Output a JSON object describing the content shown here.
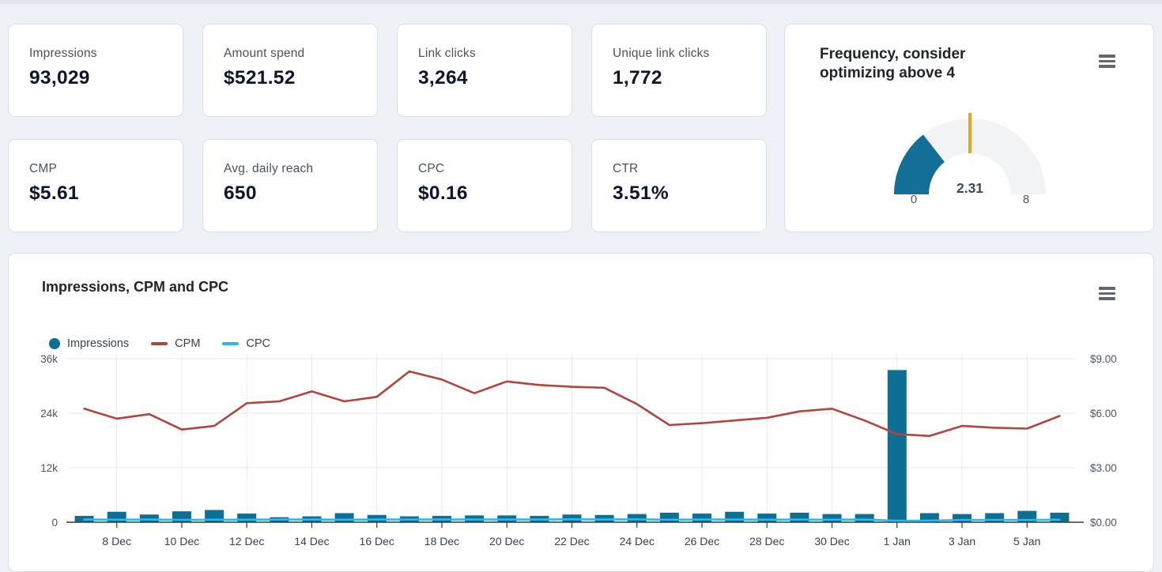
{
  "page": {
    "top_strip_color": "#e1e4eb",
    "background": "#eef2f7"
  },
  "kpi_cards": [
    {
      "label": "Impressions",
      "value": "93,029"
    },
    {
      "label": "Amount spend",
      "value": "$521.52"
    },
    {
      "label": "Link clicks",
      "value": "3,264"
    },
    {
      "label": "Unique link clicks",
      "value": "1,772"
    },
    {
      "label": "CMP",
      "value": "$5.61"
    },
    {
      "label": "Avg. daily reach",
      "value": "650"
    },
    {
      "label": "CPC",
      "value": "$0.16"
    },
    {
      "label": "CTR",
      "value": "3.51%"
    }
  ],
  "gauge_card": {
    "title": "Frequency, consider optimizing above 4",
    "menu_icon": "hamburger-menu",
    "gauge": {
      "min": 0,
      "max": 8,
      "value": 2.31,
      "threshold": 4,
      "min_label": "0",
      "max_label": "8",
      "value_label": "2.31",
      "fill_color": "#136f96",
      "track_color": "#f2f3f4",
      "threshold_color": "#e9a51f"
    }
  },
  "chart_card": {
    "title": "Impressions, CPM and CPC",
    "menu_icon": "hamburger-menu",
    "legend": [
      {
        "label": "Impressions",
        "marker": "circle",
        "color": "#0e6f94"
      },
      {
        "label": "CPM",
        "marker": "line",
        "color": "#b2453c"
      },
      {
        "label": "CPC",
        "marker": "line",
        "color": "#29b8ef"
      }
    ]
  },
  "chart_data": {
    "type": "combo",
    "title": "Impressions, CPM and CPC",
    "categories": [
      "7 Dec",
      "8 Dec",
      "9 Dec",
      "10 Dec",
      "11 Dec",
      "12 Dec",
      "13 Dec",
      "14 Dec",
      "15 Dec",
      "16 Dec",
      "17 Dec",
      "18 Dec",
      "19 Dec",
      "20 Dec",
      "21 Dec",
      "22 Dec",
      "23 Dec",
      "24 Dec",
      "25 Dec",
      "26 Dec",
      "27 Dec",
      "28 Dec",
      "29 Dec",
      "30 Dec",
      "31 Dec",
      "1 Jan",
      "2 Jan",
      "3 Jan",
      "4 Jan",
      "5 Jan",
      "6 Jan"
    ],
    "x_tick_labels": [
      "8 Dec",
      "10 Dec",
      "12 Dec",
      "14 Dec",
      "16 Dec",
      "18 Dec",
      "20 Dec",
      "22 Dec",
      "24 Dec",
      "26 Dec",
      "28 Dec",
      "30 Dec",
      "1 Jan",
      "3 Jan",
      "5 Jan"
    ],
    "series": [
      {
        "name": "Impressions",
        "type": "bar",
        "axis": "left",
        "color": "#0e6f94",
        "values": [
          1400,
          2300,
          1700,
          2400,
          2700,
          1900,
          1100,
          1300,
          2000,
          1600,
          1300,
          1400,
          1500,
          1500,
          1400,
          1700,
          1600,
          1800,
          2100,
          1900,
          2300,
          1900,
          2100,
          1800,
          1800,
          33500,
          2000,
          1800,
          2000,
          2500,
          2100
        ]
      },
      {
        "name": "CPM",
        "type": "line",
        "axis": "right",
        "color": "#b2453c",
        "values": [
          6.25,
          5.7,
          5.95,
          5.1,
          5.3,
          6.55,
          6.65,
          7.2,
          6.65,
          6.9,
          8.3,
          7.85,
          7.1,
          7.75,
          7.55,
          7.45,
          7.4,
          6.5,
          5.35,
          5.45,
          5.6,
          5.75,
          6.1,
          6.25,
          5.6,
          4.85,
          4.75,
          5.3,
          5.2,
          5.15,
          5.85
        ]
      },
      {
        "name": "CPC",
        "type": "line",
        "axis": "right",
        "color": "#29b8ef",
        "values": [
          0.15,
          0.14,
          0.15,
          0.13,
          0.14,
          0.14,
          0.15,
          0.15,
          0.14,
          0.15,
          0.15,
          0.15,
          0.15,
          0.15,
          0.15,
          0.16,
          0.15,
          0.16,
          0.14,
          0.15,
          0.15,
          0.14,
          0.15,
          0.14,
          0.15,
          0.08,
          0.09,
          0.12,
          0.13,
          0.12,
          0.14
        ]
      }
    ],
    "left_axis": {
      "range": [
        0,
        36000
      ],
      "tick_values": [
        0,
        12000,
        24000,
        36000
      ],
      "tick_labels": [
        "0",
        "12k",
        "24k",
        "36k"
      ]
    },
    "right_axis": {
      "range": [
        0,
        9
      ],
      "tick_values": [
        0,
        3,
        6,
        9
      ],
      "tick_labels": [
        "$0.00",
        "$3.00",
        "$6.00",
        "$9.00"
      ]
    },
    "grid": true,
    "legend_position": "top-left"
  }
}
